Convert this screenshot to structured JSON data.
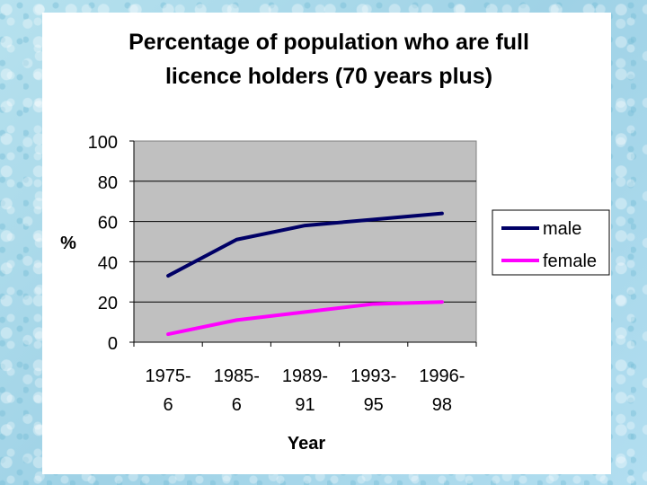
{
  "chart_data": {
    "type": "line",
    "title_line1": "Percentage of population who are full",
    "title_line2": "licence holders (70 years plus)",
    "xlabel": "Year",
    "ylabel": "%",
    "ylim": [
      0,
      100
    ],
    "yticks": [
      "0",
      "20",
      "40",
      "60",
      "80",
      "100"
    ],
    "categories": [
      {
        "line1": "1975-",
        "line2": "6"
      },
      {
        "line1": "1985-",
        "line2": "6"
      },
      {
        "line1": "1989-",
        "line2": "91"
      },
      {
        "line1": "1993-",
        "line2": "95"
      },
      {
        "line1": "1996-",
        "line2": "98"
      }
    ],
    "series": [
      {
        "name": "male",
        "color": "#000066",
        "values": [
          33,
          51,
          58,
          61,
          64
        ]
      },
      {
        "name": "female",
        "color": "#ff00ff",
        "values": [
          4,
          11,
          15,
          19,
          20
        ]
      }
    ],
    "plot_background": "#c0c0c0",
    "grid": true,
    "legend_position": "right"
  }
}
